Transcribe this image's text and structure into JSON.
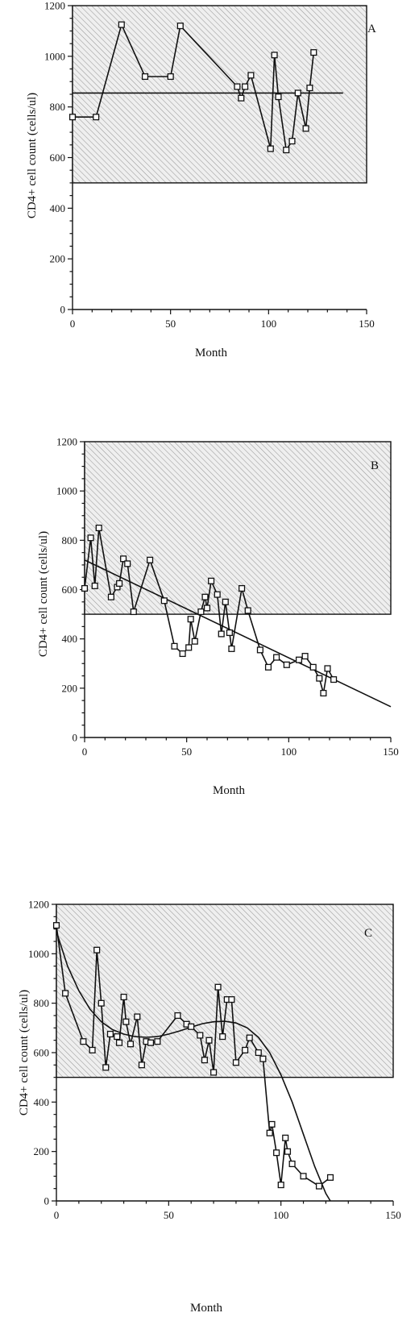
{
  "chart_data": [
    {
      "type": "line",
      "panel": "A",
      "title": "",
      "xlabel": "Month",
      "ylabel": "CD4+ cell count (cells/ul)",
      "xlim": [
        0,
        150
      ],
      "ylim": [
        0,
        1200
      ],
      "xticks": [
        0,
        50,
        100,
        150
      ],
      "yticks": [
        0,
        200,
        400,
        600,
        800,
        1000,
        1200
      ],
      "grid": false,
      "normal_range": [
        500,
        1200
      ],
      "series": [
        {
          "x": [
            0,
            12,
            25,
            37,
            50,
            55,
            84,
            86,
            88,
            91,
            101,
            103,
            105,
            109,
            112,
            115,
            119,
            121,
            123
          ],
          "y": [
            760,
            760,
            1125,
            920,
            920,
            1120,
            880,
            835,
            880,
            925,
            635,
            1005,
            840,
            630,
            665,
            855,
            715,
            875,
            1015
          ]
        }
      ],
      "fit": {
        "type": "constant",
        "x": [
          0,
          138
        ],
        "y": [
          855,
          855
        ]
      }
    },
    {
      "type": "line",
      "panel": "B",
      "title": "",
      "xlabel": "Month",
      "ylabel": "CD4+ cell count (cells/ul)",
      "xlim": [
        0,
        150
      ],
      "ylim": [
        0,
        1200
      ],
      "xticks": [
        0,
        50,
        100,
        150
      ],
      "yticks": [
        0,
        200,
        400,
        600,
        800,
        1000,
        1200
      ],
      "grid": false,
      "normal_range": [
        500,
        1200
      ],
      "series": [
        {
          "x": [
            0,
            3,
            5,
            7,
            13,
            16,
            17,
            19,
            21,
            24,
            32,
            39,
            44,
            48,
            51,
            52,
            54,
            57,
            59,
            60,
            62,
            65,
            67,
            69,
            71,
            72,
            77,
            80,
            86,
            90,
            94,
            99,
            105,
            108,
            112,
            115,
            117,
            119,
            122
          ],
          "y": [
            605,
            810,
            615,
            850,
            570,
            610,
            625,
            725,
            705,
            510,
            720,
            555,
            370,
            340,
            365,
            480,
            390,
            510,
            570,
            525,
            635,
            580,
            420,
            550,
            425,
            360,
            605,
            515,
            355,
            285,
            325,
            295,
            315,
            330,
            285,
            240,
            180,
            280,
            235
          ]
        }
      ],
      "fit": {
        "type": "linear",
        "x": [
          0,
          150
        ],
        "y": [
          720,
          125
        ]
      }
    },
    {
      "type": "line",
      "panel": "C",
      "title": "",
      "xlabel": "Month",
      "ylabel": "CD4+ cell count (cells/ul)",
      "xlim": [
        0,
        150
      ],
      "ylim": [
        0,
        1200
      ],
      "xticks": [
        0,
        50,
        100,
        150
      ],
      "yticks": [
        0,
        200,
        400,
        600,
        800,
        1000,
        1200
      ],
      "grid": false,
      "normal_range": [
        500,
        1200
      ],
      "series": [
        {
          "x": [
            0,
            4,
            12,
            16,
            18,
            20,
            22,
            24,
            27,
            28,
            30,
            31,
            33,
            36,
            38,
            40,
            42,
            45,
            54,
            58,
            60,
            64,
            66,
            68,
            70,
            72,
            74,
            76,
            78,
            80,
            84,
            86,
            90,
            92,
            95,
            96,
            98,
            100,
            102,
            103,
            105,
            110,
            117,
            122
          ],
          "y": [
            1115,
            840,
            645,
            610,
            1015,
            800,
            540,
            675,
            665,
            640,
            825,
            725,
            635,
            745,
            550,
            645,
            640,
            645,
            750,
            715,
            705,
            670,
            570,
            650,
            520,
            865,
            665,
            815,
            815,
            560,
            610,
            660,
            600,
            575,
            275,
            310,
            195,
            65,
            255,
            200,
            150,
            100,
            60,
            95
          ]
        }
      ],
      "fit": {
        "type": "curve",
        "x": [
          0,
          5,
          10,
          15,
          20,
          25,
          30,
          35,
          40,
          45,
          50,
          55,
          60,
          65,
          70,
          75,
          80,
          85,
          90,
          95,
          100,
          105,
          110,
          115,
          120,
          122
        ],
        "y": [
          1090,
          950,
          850,
          775,
          725,
          693,
          675,
          665,
          662,
          665,
          675,
          688,
          703,
          717,
          725,
          727,
          720,
          700,
          662,
          600,
          510,
          400,
          270,
          140,
          30,
          0
        ]
      }
    }
  ],
  "panel_labels": [
    "A",
    "B",
    "C"
  ]
}
